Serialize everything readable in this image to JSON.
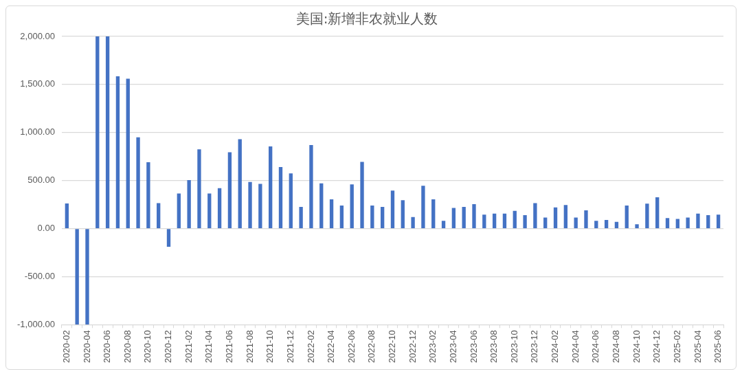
{
  "chart_data": {
    "type": "bar",
    "title": "美国:新增非农就业人数",
    "categories": [
      "2020-02",
      null,
      "2020-04",
      null,
      "2020-06",
      null,
      "2020-08",
      null,
      "2020-10",
      null,
      "2020-12",
      null,
      "2021-02",
      null,
      "2021-04",
      null,
      "2021-06",
      null,
      "2021-08",
      null,
      "2021-10",
      null,
      "2021-12",
      null,
      "2022-02",
      null,
      "2022-04",
      null,
      "2022-06",
      null,
      "2022-08",
      null,
      "2022-10",
      null,
      "2022-12",
      null,
      "2023-02",
      null,
      "2023-04",
      null,
      "2023-06",
      null,
      "2023-08",
      null,
      "2023-10",
      null,
      "2023-12",
      null,
      "2024-02",
      null,
      "2024-04",
      null,
      "2024-06",
      null,
      "2024-08",
      null,
      "2024-10",
      null,
      "2024-12",
      null,
      "2025-02",
      null,
      "2025-04",
      null,
      "2025-06"
    ],
    "values": [
      262,
      -1000,
      -1000,
      2000,
      2000,
      1585,
      1560,
      950,
      690,
      265,
      -190,
      365,
      505,
      825,
      365,
      420,
      795,
      930,
      485,
      465,
      855,
      640,
      575,
      225,
      870,
      470,
      305,
      240,
      460,
      695,
      240,
      225,
      395,
      295,
      120,
      445,
      305,
      80,
      215,
      225,
      255,
      145,
      155,
      155,
      185,
      140,
      265,
      115,
      220,
      245,
      115,
      190,
      80,
      90,
      70,
      240,
      45,
      260,
      325,
      110,
      100,
      115,
      155,
      140,
      145
    ],
    "color": "#4472c4",
    "ylim": [
      -1000,
      2000
    ],
    "yticks": [
      {
        "value": -1000,
        "label": "-1,000.00"
      },
      {
        "value": -500,
        "label": "-500.00"
      },
      {
        "value": 0,
        "label": "0.00"
      },
      {
        "value": 500,
        "label": "500.00"
      },
      {
        "value": 1000,
        "label": "1,000.00"
      },
      {
        "value": 1500,
        "label": "1,500.00"
      },
      {
        "value": 2000,
        "label": "2,000.00"
      }
    ],
    "grid": "y",
    "legend": false
  }
}
